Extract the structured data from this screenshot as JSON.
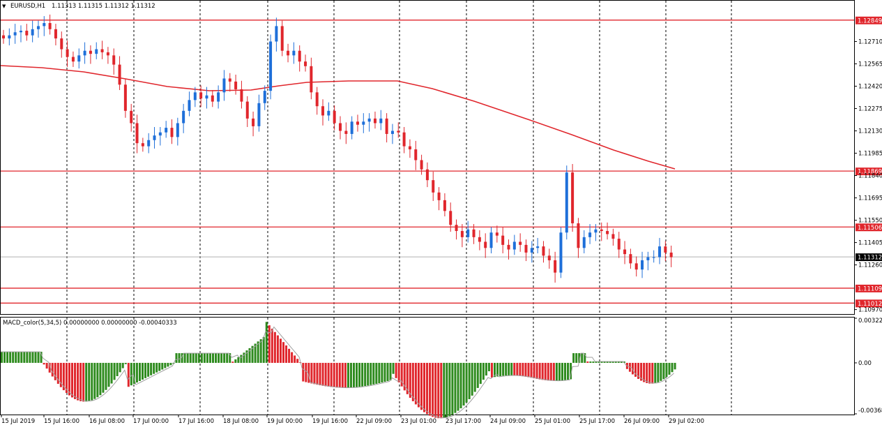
{
  "window": {
    "header_prefix": "▼",
    "symbol_title": "EURUSD,H1",
    "ohlc": "1.11313 1.11315 1.11312 1.11312"
  },
  "indicator": {
    "title": "MACD_color(5,34,5) 0.00000000 0.00000000 -0.00040333"
  },
  "colors": {
    "bull": "#1e6fd9",
    "bear": "#e0262c",
    "ma": "#e0262c",
    "level": "#e0262c",
    "grid": "#000000",
    "hist_pos": "#2e8b1e",
    "hist_neg": "#e0262c",
    "signal": "#a0a0a0",
    "current_bg": "#000000"
  },
  "price_axis": {
    "ticks": [
      "1.12710",
      "1.12565",
      "1.12420",
      "1.12275",
      "1.12130",
      "1.11985",
      "1.11840",
      "1.11695",
      "1.11550",
      "1.11405",
      "1.11260",
      "1.10970"
    ],
    "levels": [
      "1.12849",
      "1.11869",
      "1.11506",
      "1.11109",
      "1.11012"
    ],
    "current": "1.11312"
  },
  "indicator_axis": {
    "ticks": [
      "0.003222",
      "0.00",
      "-0.00368"
    ]
  },
  "time_axis": [
    "15 Jul 2019",
    "15 Jul 16:00",
    "16 Jul 08:00",
    "17 Jul 00:00",
    "17 Jul 16:00",
    "18 Jul 08:00",
    "19 Jul 00:00",
    "19 Jul 16:00",
    "22 Jul 09:00",
    "23 Jul 01:00",
    "23 Jul 17:00",
    "24 Jul 09:00",
    "25 Jul 01:00",
    "25 Jul 17:00",
    "26 Jul 09:00",
    "29 Jul 02:00"
  ],
  "chart_data": {
    "type": "candlestick",
    "series": [
      {
        "name": "EURUSD,H1",
        "close": [
          1.1273,
          1.1275,
          1.1277,
          1.1278,
          1.1275,
          1.1279,
          1.1281,
          1.1283,
          1.1279,
          1.1273,
          1.1266,
          1.1261,
          1.1258,
          1.1262,
          1.1265,
          1.1263,
          1.1266,
          1.1264,
          1.1262,
          1.1256,
          1.1243,
          1.1226,
          1.1218,
          1.1205,
          1.1203,
          1.1207,
          1.121,
          1.1212,
          1.1215,
          1.1209,
          1.1218,
          1.1226,
          1.1233,
          1.1238,
          1.1234,
          1.1236,
          1.1232,
          1.1238,
          1.1247,
          1.1245,
          1.124,
          1.1232,
          1.1221,
          1.1216,
          1.1231,
          1.1239,
          1.1271,
          1.1281,
          1.1265,
          1.1262,
          1.1265,
          1.1258,
          1.1255,
          1.1238,
          1.1229,
          1.1223,
          1.1226,
          1.1218,
          1.1213,
          1.1211,
          1.1219,
          1.1217,
          1.1219,
          1.1221,
          1.1218,
          1.1221,
          1.1211,
          1.1213,
          1.1212,
          1.1203,
          1.1201,
          1.1194,
          1.1188,
          1.1181,
          1.1173,
          1.1168,
          1.1161,
          1.1152,
          1.1148,
          1.1144,
          1.1149,
          1.1144,
          1.1141,
          1.1137,
          1.1147,
          1.1145,
          1.1139,
          1.1136,
          1.1141,
          1.1139,
          1.1134,
          1.1137,
          1.1138,
          1.1132,
          1.1129,
          1.1121,
          1.1147,
          1.1186,
          1.1153,
          1.1137,
          1.1144,
          1.1147,
          1.1149,
          1.1148,
          1.1146,
          1.1143,
          1.1136,
          1.1133,
          1.1127,
          1.1123,
          1.1129,
          1.1131,
          1.1131,
          1.1138,
          1.1134,
          1.1131
        ],
        "up_count": 0
      }
    ],
    "moving_average": "MA",
    "horizontal_levels": [
      1.12849,
      1.11869,
      1.11506,
      1.11109,
      1.11012
    ],
    "current_price": 1.11312,
    "ylim": [
      1.10941,
      1.12907
    ],
    "macd": {
      "name": "MACD_color(5,34,5)",
      "values_note": "",
      "ylim": [
        -0.00368,
        0.003222
      ]
    }
  }
}
